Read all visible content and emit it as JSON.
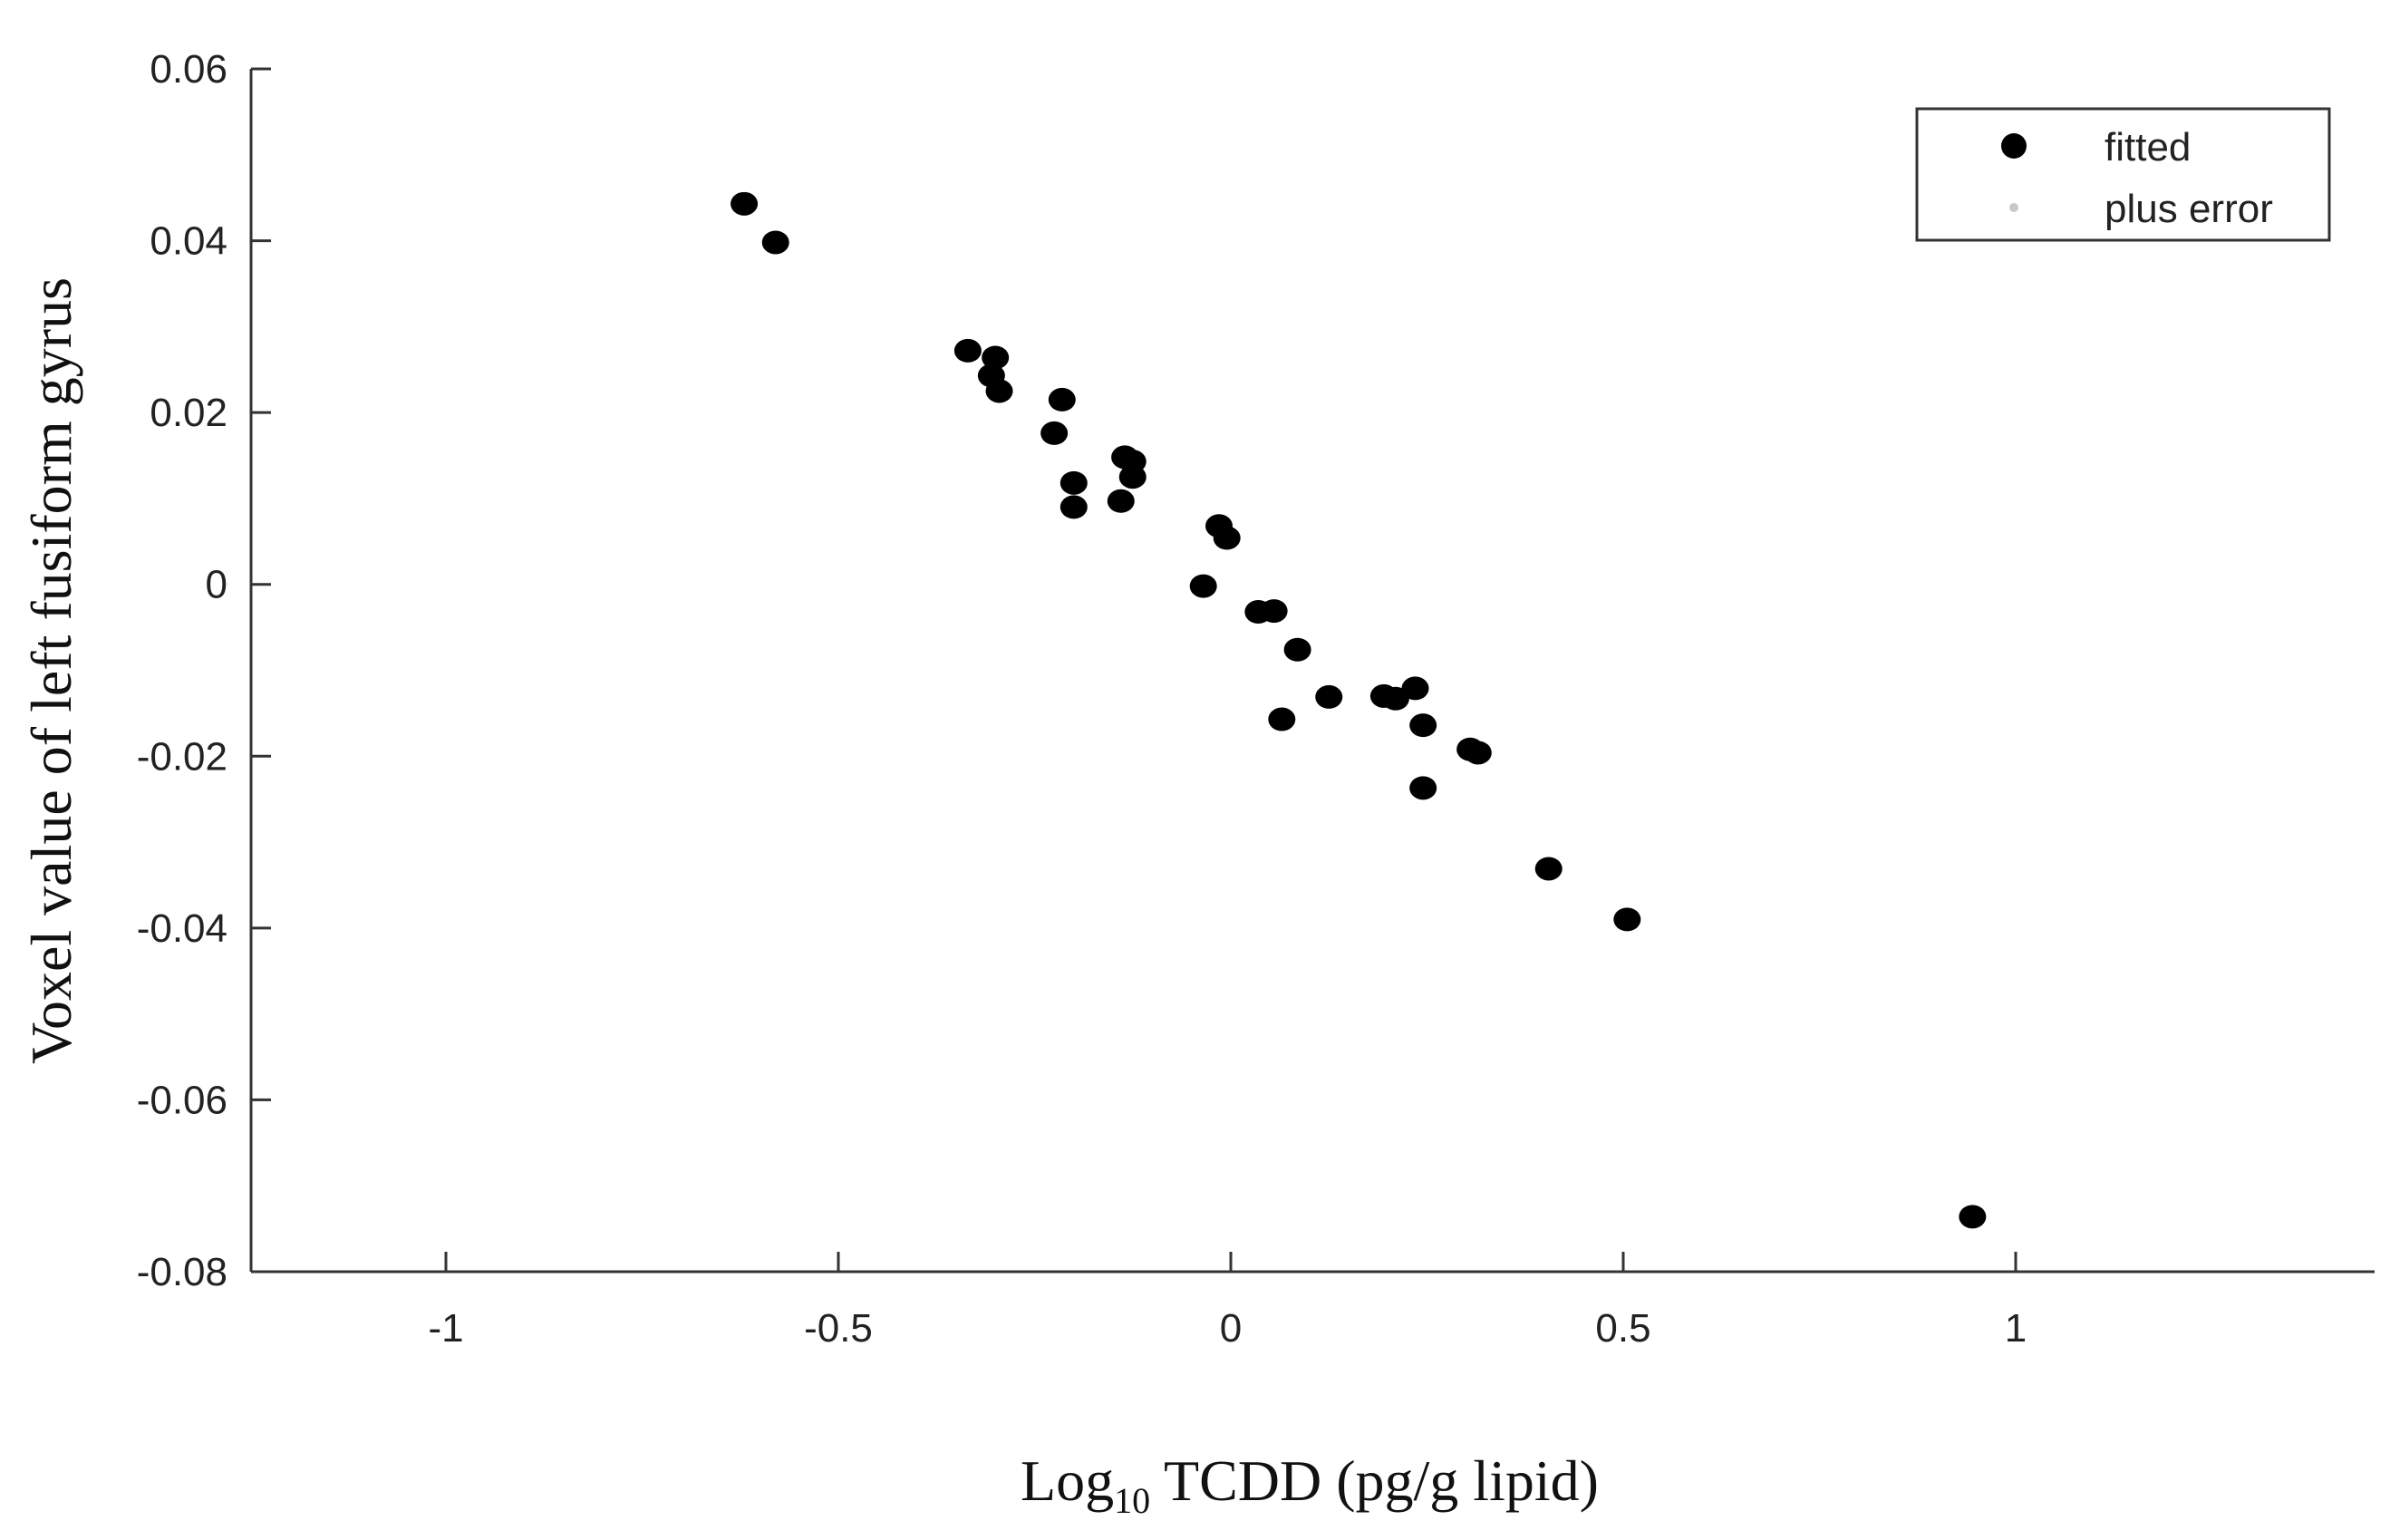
{
  "chart_data": {
    "type": "scatter",
    "xlabel": {
      "prefix": "Log",
      "subscript": "10",
      "suffix": " TCDD (pg/g lipid)"
    },
    "ylabel": "Voxel value of left fusiform gyrus",
    "xlim": [
      -1.25,
      1.45
    ],
    "ylim": [
      -0.08,
      0.06
    ],
    "xticks": [
      -1,
      -0.5,
      0,
      0.5,
      1
    ],
    "xtick_labels": [
      "-1",
      "-0.5",
      "0",
      "0.5",
      "1"
    ],
    "yticks": [
      0.06,
      0.04,
      0.02,
      0,
      -0.02,
      -0.04,
      -0.06,
      -0.08
    ],
    "ytick_labels": [
      "0.06",
      "0.04",
      "0.02",
      "0",
      "-0.02",
      "-0.04",
      "-0.06",
      "-0.08"
    ],
    "grid": false,
    "legend": {
      "position": "top-right",
      "entries": [
        {
          "label": "fitted",
          "color": "#000000",
          "marker": "large-dot"
        },
        {
          "label": "plus error",
          "color": "#c8c8c8",
          "marker": "small-dot"
        }
      ]
    },
    "series": [
      {
        "name": "fitted",
        "color": "#000000",
        "points": [
          [
            -0.62,
            0.0443
          ],
          [
            -0.58,
            0.0398
          ],
          [
            -0.335,
            0.0272
          ],
          [
            -0.3,
            0.0264
          ],
          [
            -0.305,
            0.0243
          ],
          [
            -0.295,
            0.0225
          ],
          [
            -0.215,
            0.0215
          ],
          [
            -0.225,
            0.0176
          ],
          [
            -0.2,
            0.0118
          ],
          [
            -0.2,
            0.009
          ],
          [
            -0.135,
            0.0148
          ],
          [
            -0.125,
            0.0143
          ],
          [
            -0.125,
            0.0125
          ],
          [
            -0.14,
            0.0097
          ],
          [
            -0.015,
            0.0068
          ],
          [
            -0.005,
            0.0054
          ],
          [
            -0.035,
            -0.0002
          ],
          [
            0.035,
            -0.0032
          ],
          [
            0.055,
            -0.0031
          ],
          [
            0.085,
            -0.0076
          ],
          [
            0.065,
            -0.0157
          ],
          [
            0.125,
            -0.0131
          ],
          [
            0.195,
            -0.013
          ],
          [
            0.21,
            -0.0133
          ],
          [
            0.235,
            -0.0121
          ],
          [
            0.245,
            -0.0164
          ],
          [
            0.305,
            -0.0192
          ],
          [
            0.315,
            -0.0196
          ],
          [
            0.245,
            -0.0237
          ],
          [
            0.405,
            -0.0331
          ],
          [
            0.505,
            -0.039
          ],
          [
            0.945,
            -0.0736
          ]
        ]
      }
    ]
  }
}
